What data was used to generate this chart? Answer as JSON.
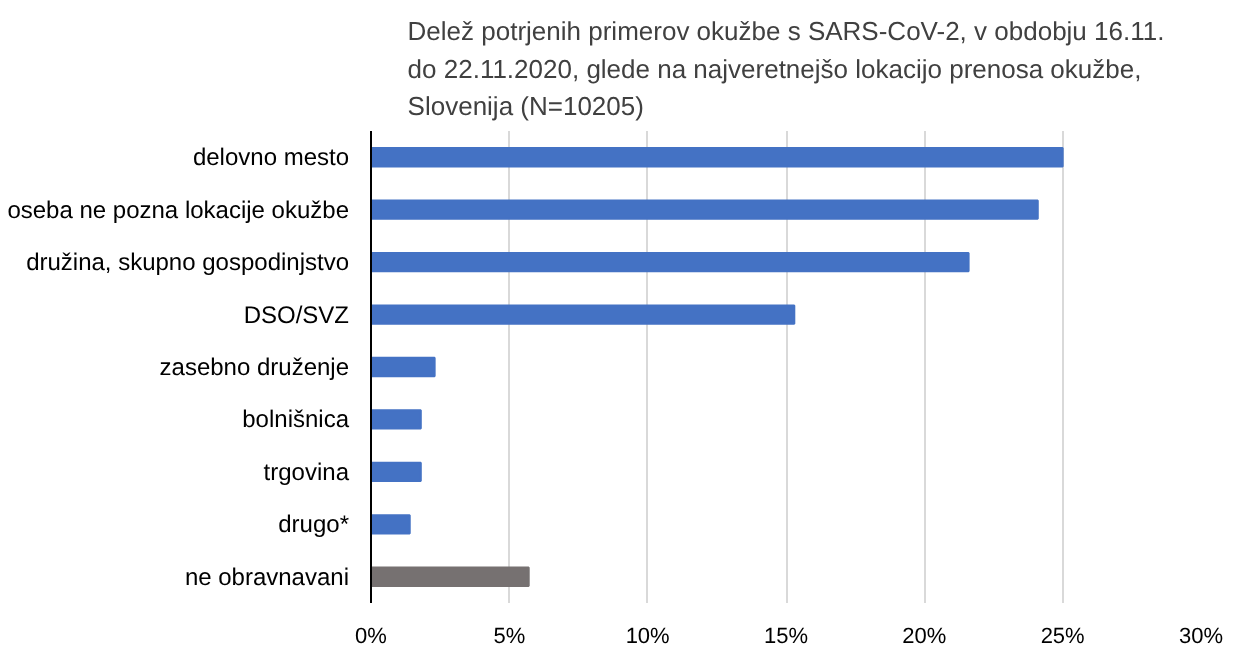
{
  "chart_data": {
    "type": "bar",
    "orientation": "horizontal",
    "title": "Delež potrjenih primerov okužbe s SARS-CoV-2, v obdobju 16.11.\ndo 22.11.2020, glede na najveretnejšo lokacijo prenosa okužbe,\nSlovenija (N=10205)",
    "categories": [
      "delovno mesto",
      "oseba ne pozna lokacije okužbe",
      "družina, skupno gospodinjstvo",
      "DSO/SVZ",
      "zasebno druženje",
      "bolnišnica",
      "trgovina",
      "drugo*",
      "ne obravnavani"
    ],
    "values": [
      25.0,
      24.1,
      21.6,
      15.3,
      2.3,
      1.8,
      1.8,
      1.4,
      5.7
    ],
    "colors": [
      "#4472c4",
      "#4472c4",
      "#4472c4",
      "#4472c4",
      "#4472c4",
      "#4472c4",
      "#4472c4",
      "#4472c4",
      "#767171"
    ],
    "xlim": [
      0,
      30
    ],
    "xticks": [
      {
        "value": 0,
        "label": "0%"
      },
      {
        "value": 5,
        "label": "5%"
      },
      {
        "value": 10,
        "label": "10%"
      },
      {
        "value": 15,
        "label": "15%"
      },
      {
        "value": 20,
        "label": "20%"
      },
      {
        "value": 25,
        "label": "25%"
      },
      {
        "value": 30,
        "label": "30%"
      }
    ],
    "grid": "x"
  }
}
